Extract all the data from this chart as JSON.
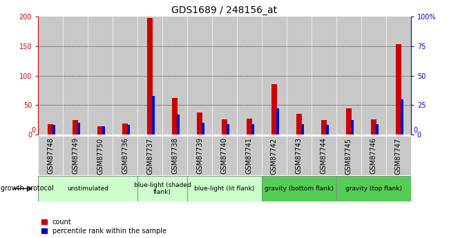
{
  "title": "GDS1689 / 248156_at",
  "samples": [
    "GSM87748",
    "GSM87749",
    "GSM87750",
    "GSM87736",
    "GSM87737",
    "GSM87738",
    "GSM87739",
    "GSM87740",
    "GSM87741",
    "GSM87742",
    "GSM87743",
    "GSM87744",
    "GSM87745",
    "GSM87746",
    "GSM87747"
  ],
  "count_values": [
    18,
    25,
    14,
    19,
    198,
    62,
    37,
    26,
    27,
    85,
    35,
    24,
    45,
    26,
    153
  ],
  "percentile_values": [
    8,
    10,
    7,
    8,
    33,
    17,
    10,
    9,
    9,
    22,
    9,
    8,
    12,
    9,
    30
  ],
  "count_color": "#cc0000",
  "percentile_color": "#0000cc",
  "bar_bg_color": "#c8c8c8",
  "ylim_left": [
    0,
    200
  ],
  "ylim_right": [
    0,
    100
  ],
  "yticks_left": [
    0,
    50,
    100,
    150,
    200
  ],
  "yticks_right": [
    0,
    25,
    50,
    75,
    100
  ],
  "ytick_labels_right": [
    "0",
    "25",
    "50",
    "75",
    "100%"
  ],
  "groups": [
    {
      "label": "unstimulated",
      "indices": [
        0,
        1,
        2,
        3
      ],
      "color": "#ccffcc"
    },
    {
      "label": "blue-light (shaded\nflank)",
      "indices": [
        4,
        5
      ],
      "color": "#ccffcc"
    },
    {
      "label": "blue-light (lit flank)",
      "indices": [
        6,
        7,
        8
      ],
      "color": "#ccffcc"
    },
    {
      "label": "gravity (bottom flank)",
      "indices": [
        9,
        10,
        11
      ],
      "color": "#55cc55"
    },
    {
      "label": "gravity (top flank)",
      "indices": [
        12,
        13,
        14
      ],
      "color": "#55cc55"
    }
  ],
  "growth_protocol_label": "growth protocol",
  "legend_count": "count",
  "legend_pct": "percentile rank within the sample",
  "title_fontsize": 10,
  "tick_fontsize": 7,
  "group_label_fontsize": 6.5,
  "left_axis_color": "#cc0000",
  "right_axis_color": "#0000cc"
}
